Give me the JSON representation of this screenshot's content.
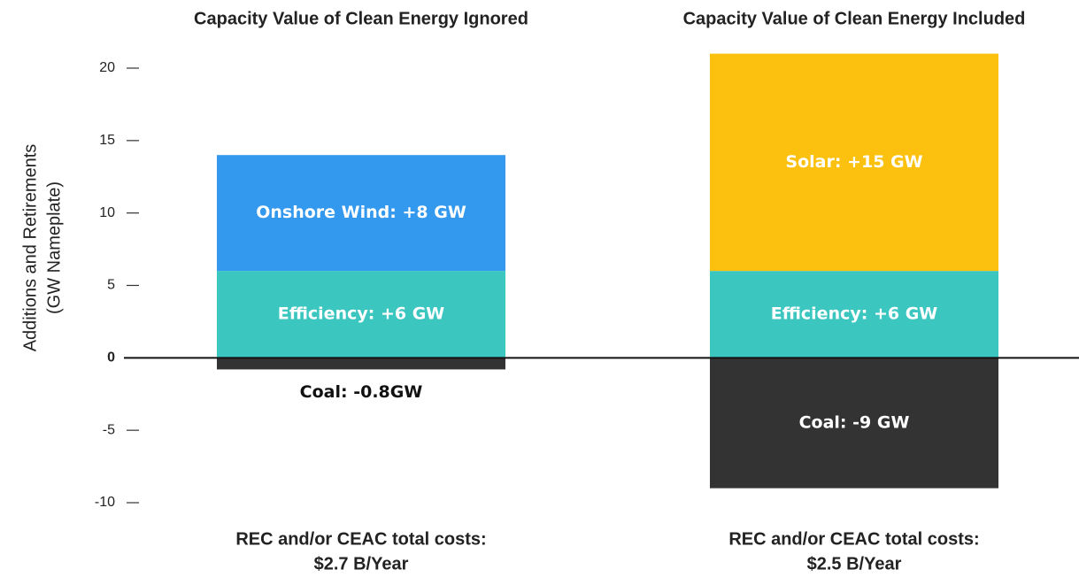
{
  "chart_data": {
    "type": "bar",
    "stacked": true,
    "categories": [
      "Capacity Value of Clean Energy Ignored",
      "Capacity Value of Clean Energy Included"
    ],
    "ylabel": [
      "Additions and Retirements",
      "(GW Nameplate)"
    ],
    "ylim": [
      -10,
      20
    ],
    "yticks": [
      -10,
      -5,
      0,
      5,
      10,
      15,
      20
    ],
    "series": [
      {
        "color": "#3cc6c0",
        "values": [
          6,
          6
        ],
        "value_labels": [
          "Efficiency: +6 GW",
          "Efficiency: +6 GW"
        ]
      },
      {
        "color": "#3399ee",
        "values": [
          8,
          null
        ],
        "value_labels": [
          "Onshore Wind: +8 GW",
          null
        ]
      },
      {
        "color": "#fcc10e",
        "values": [
          null,
          15
        ],
        "value_labels": [
          null,
          "Solar: +15 GW"
        ]
      },
      {
        "color": "#333333",
        "values": [
          -0.8,
          -9
        ],
        "value_labels": [
          "Coal: -0.8GW",
          "Coal: -9 GW"
        ]
      }
    ],
    "notes": [
      [
        "REC and/or CEAC total costs:",
        "$2.7 B/Year"
      ],
      [
        "REC and/or CEAC total costs:",
        "$2.5 B/Year"
      ]
    ]
  }
}
